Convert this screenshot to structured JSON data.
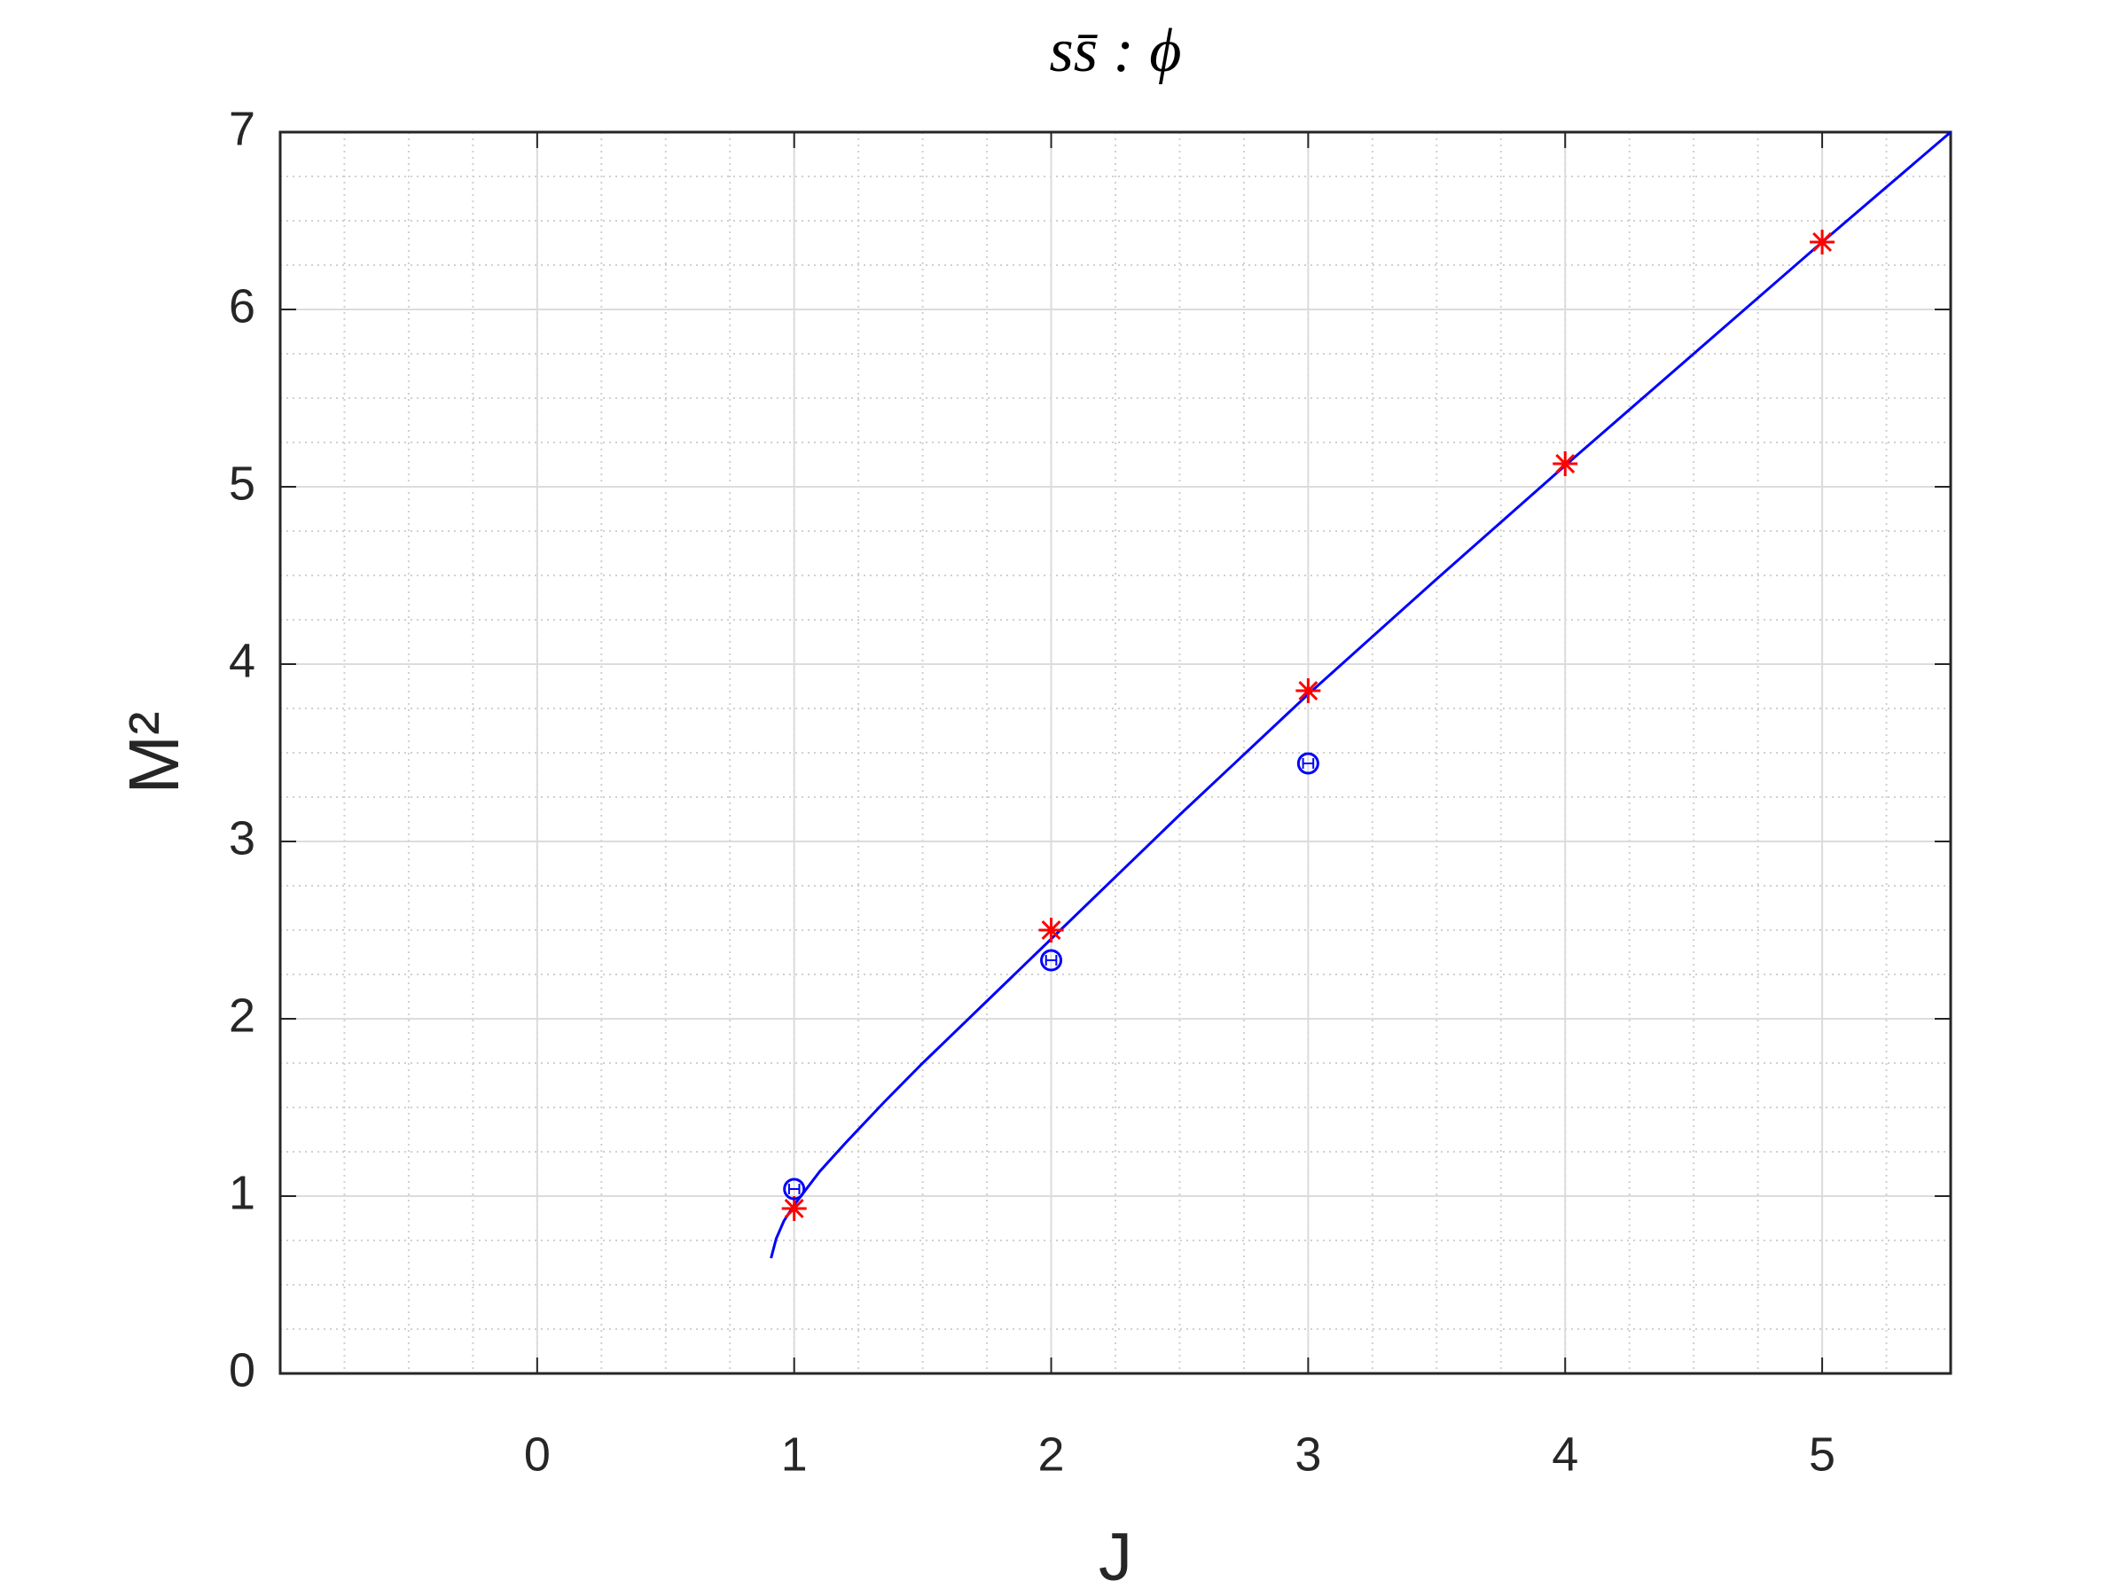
{
  "chart_data": {
    "type": "line",
    "title": "ss̄ : ϕ",
    "xlabel": "J",
    "ylabel": "M²",
    "xlim": [
      -1,
      5.5
    ],
    "ylim": [
      0,
      7
    ],
    "xticks": [
      0,
      1,
      2,
      3,
      4,
      5
    ],
    "yticks": [
      0,
      1,
      2,
      3,
      4,
      5,
      6,
      7
    ],
    "grid": true,
    "minor_grid": true,
    "series": [
      {
        "style": "line",
        "color": "#0000ff",
        "x": [
          0.91,
          0.93,
          0.96,
          1.0,
          1.1,
          1.2,
          1.35,
          1.5,
          1.75,
          2.0,
          2.5,
          3.0,
          3.5,
          4.0,
          4.5,
          5.0,
          5.5
        ],
        "values": [
          0.65,
          0.76,
          0.86,
          0.95,
          1.14,
          1.3,
          1.53,
          1.75,
          2.1,
          2.45,
          3.15,
          3.83,
          4.48,
          5.12,
          5.75,
          6.38,
          7.0
        ]
      },
      {
        "style": "asterisk",
        "color": "#ff0000",
        "x": [
          1,
          2,
          3,
          4,
          5
        ],
        "values": [
          0.93,
          2.5,
          3.85,
          5.13,
          6.38
        ]
      },
      {
        "style": "circle",
        "color": "#0000ff",
        "x": [
          1,
          2,
          3
        ],
        "values": [
          1.04,
          2.33,
          3.44
        ],
        "xerr": [
          0.02,
          0.02,
          0.02
        ]
      }
    ]
  }
}
